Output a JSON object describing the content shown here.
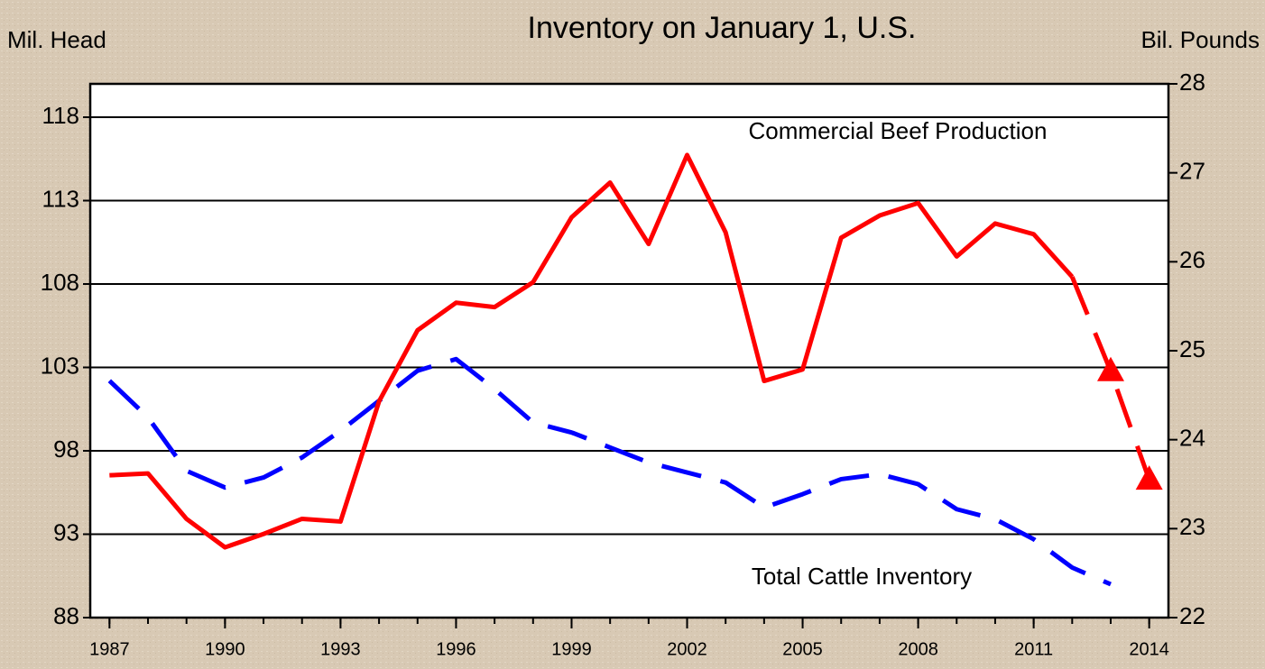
{
  "chart_data": {
    "type": "line",
    "title": "Inventory on January 1, U.S.",
    "y_label": "Mil. Head",
    "y2_label": "Bil. Pounds",
    "x": [
      1987,
      1988,
      1989,
      1990,
      1991,
      1992,
      1993,
      1994,
      1995,
      1996,
      1997,
      1998,
      1999,
      2000,
      2001,
      2002,
      2003,
      2004,
      2005,
      2006,
      2007,
      2008,
      2009,
      2010,
      2011,
      2012,
      2013,
      2014
    ],
    "xlim": [
      1986.5,
      2014.5
    ],
    "xticks": [
      1987,
      1990,
      1993,
      1996,
      1999,
      2002,
      2005,
      2008,
      2011,
      2014
    ],
    "ylim": [
      88,
      120
    ],
    "yticks": [
      88,
      93,
      98,
      103,
      108,
      113,
      118
    ],
    "y2lim": [
      22,
      28
    ],
    "y2ticks": [
      22,
      23,
      24,
      25,
      26,
      27,
      28
    ],
    "grid": true,
    "series": [
      {
        "name": "Total Cattle Inventory",
        "color": "#0000ff",
        "dashed": true,
        "values": [
          102.2,
          100.0,
          96.8,
          95.8,
          96.4,
          97.6,
          99.2,
          101.0,
          102.8,
          103.5,
          101.7,
          99.7,
          99.1,
          98.2,
          97.3,
          96.7,
          96.1,
          94.6,
          95.4,
          96.3,
          96.6,
          96.0,
          94.5,
          93.9,
          92.7,
          91.0,
          90.0,
          null
        ]
      },
      {
        "name": "Commercial Beef Production",
        "color": "#ff0000",
        "axis": "y2",
        "solid_until": 2012,
        "forecast_marker": "triangle",
        "values": [
          23.6,
          23.62,
          23.11,
          22.79,
          22.94,
          23.11,
          23.08,
          24.43,
          25.23,
          25.54,
          25.49,
          25.77,
          26.5,
          26.89,
          26.2,
          27.2,
          26.33,
          24.66,
          24.79,
          26.27,
          26.52,
          26.66,
          26.06,
          26.43,
          26.31,
          25.83,
          24.77,
          23.55
        ]
      }
    ]
  }
}
